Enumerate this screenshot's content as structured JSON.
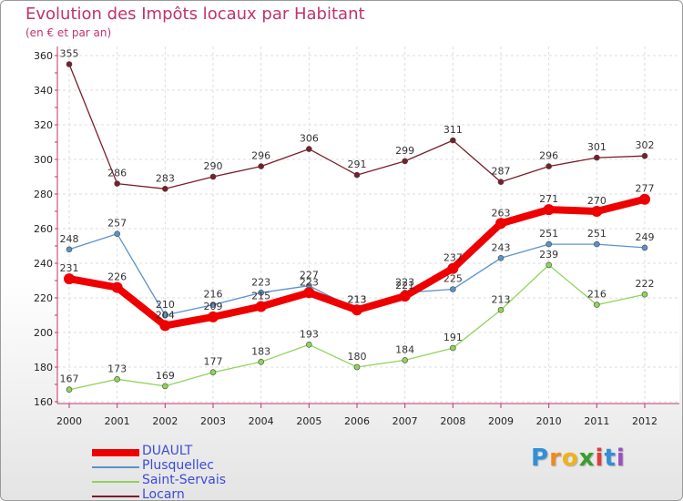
{
  "header": {
    "title": "Evolution des Impôts locaux par Habitant",
    "subtitle": "(en € et par an)"
  },
  "chart_data": {
    "type": "line",
    "title": "Evolution des Impôts locaux par Habitant",
    "subtitle": "(en € et par an)",
    "xlabel": "",
    "ylabel": "",
    "ylim": [
      160,
      360
    ],
    "yticks": [
      160,
      180,
      200,
      220,
      240,
      260,
      280,
      300,
      320,
      340,
      360
    ],
    "grid": true,
    "legend_position": "bottom-left",
    "categories": [
      "2000",
      "2001",
      "2002",
      "2003",
      "2004",
      "2005",
      "2006",
      "2007",
      "2008",
      "2009",
      "2010",
      "2011",
      "2012"
    ],
    "series": [
      {
        "name": "Locarn",
        "color": "#7a1e28",
        "values": [
          355,
          286,
          283,
          290,
          296,
          306,
          291,
          299,
          311,
          287,
          296,
          301,
          302
        ]
      },
      {
        "name": "Plusquellec",
        "color": "#5b93c8",
        "values": [
          248,
          257,
          210,
          216,
          223,
          227,
          213,
          223,
          225,
          243,
          251,
          251,
          249
        ]
      },
      {
        "name": "Saint-Servais",
        "color": "#8fd45a",
        "values": [
          167,
          173,
          169,
          177,
          183,
          193,
          180,
          184,
          191,
          213,
          239,
          216,
          222
        ]
      },
      {
        "name": "DUAULT",
        "color": "#ee0000",
        "values": [
          231,
          226,
          204,
          209,
          215,
          223,
          213,
          221,
          237,
          263,
          271,
          270,
          277
        ]
      }
    ]
  },
  "legend": {
    "items": [
      {
        "label": "DUAULT",
        "color": "#ee0000"
      },
      {
        "label": "Plusquellec",
        "color": "#5b93c8"
      },
      {
        "label": "Saint-Servais",
        "color": "#8fd45a"
      },
      {
        "label": "Locarn",
        "color": "#7a1e28"
      }
    ]
  },
  "logo": {
    "letters": [
      "P",
      "r",
      "o",
      "x",
      "i",
      "t",
      "i"
    ],
    "colors": [
      "#2f8fd8",
      "#f08a1c",
      "#f0b21c",
      "#3a9d2e",
      "#e23b3b",
      "#2f8fd8",
      "#9b4fc2"
    ]
  }
}
